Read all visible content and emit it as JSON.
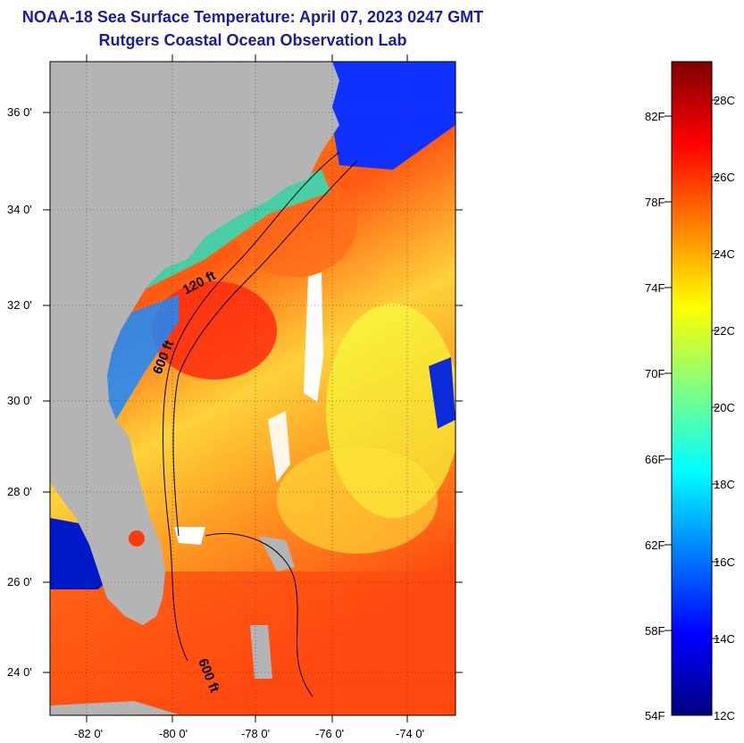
{
  "header": {
    "title": "NOAA-18 Sea Surface Temperature:  April 07, 2023 0247 GMT",
    "subtitle": "Rutgers Coastal Ocean Observation Lab"
  },
  "map": {
    "latitude_labels": [
      "36 0'",
      "34 0'",
      "32 0'",
      "30 0'",
      "28 0'",
      "26 0'",
      "24 0'"
    ],
    "longitude_labels": [
      "-82 0'",
      "-80 0'",
      "-78 0'",
      "-76 0'",
      "-74 0'"
    ],
    "contour_labels": [
      "120 ft",
      "600 ft",
      "600 ft"
    ],
    "colors": {
      "land": "#b4b4b4",
      "cloud": "#ffffff"
    }
  },
  "colorbar": {
    "fahrenheit_labels": [
      "82F",
      "78F",
      "74F",
      "70F",
      "66F",
      "62F",
      "58F",
      "54F"
    ],
    "celsius_labels": [
      "28C",
      "26C",
      "24C",
      "22C",
      "20C",
      "18C",
      "16C",
      "14C",
      "12C"
    ],
    "colors": [
      "#00007f",
      "#0000ff",
      "#0080ff",
      "#00ffff",
      "#80ff80",
      "#ffff00",
      "#ff8000",
      "#ff0000",
      "#7f0000"
    ]
  }
}
